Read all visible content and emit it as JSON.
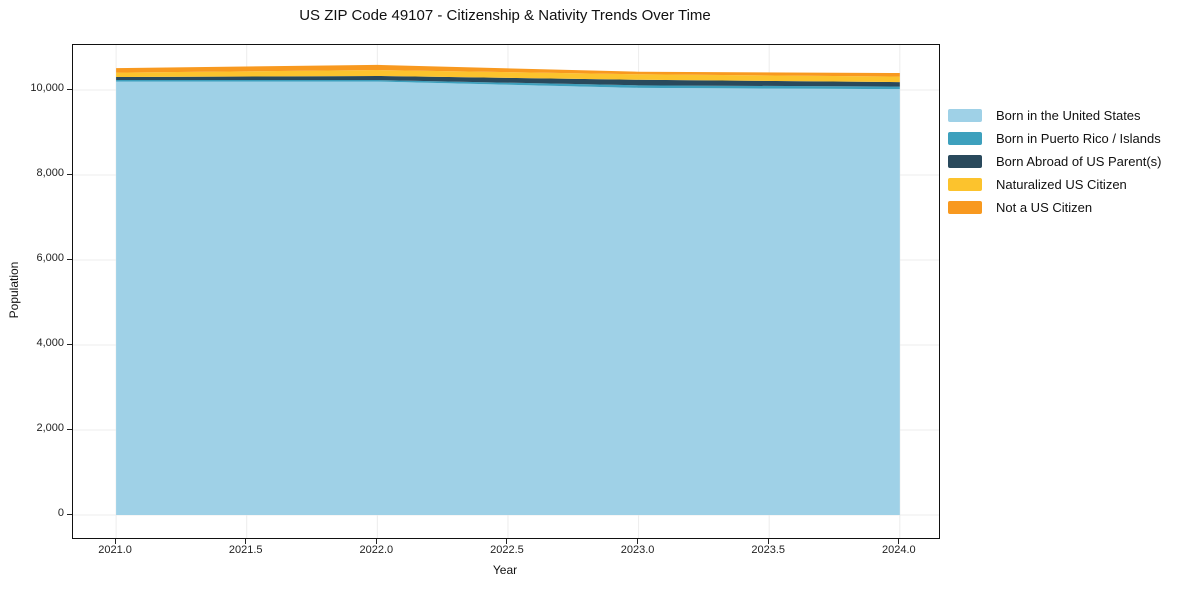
{
  "chart_data": {
    "type": "area",
    "stacked": true,
    "title": "US ZIP Code 49107 - Citizenship & Nativity Trends Over Time",
    "xlabel": "Year",
    "ylabel": "Population",
    "x": [
      2021,
      2022,
      2023,
      2024
    ],
    "series": [
      {
        "name": "Born in the United States",
        "color": "#9fd1e7",
        "values": [
          10200,
          10200,
          10050,
          10020
        ]
      },
      {
        "name": "Born in Puerto Rico / Islands",
        "color": "#3da0bd",
        "values": [
          35,
          35,
          60,
          60
        ]
      },
      {
        "name": "Born Abroad of US Parent(s)",
        "color": "#29495c",
        "values": [
          70,
          95,
          130,
          105
        ]
      },
      {
        "name": "Naturalized US Citizen",
        "color": "#fcc32d",
        "values": [
          105,
          140,
          130,
          130
        ]
      },
      {
        "name": "Not a US Citizen",
        "color": "#f8991f",
        "values": [
          105,
          120,
          60,
          85
        ]
      }
    ],
    "xlim": [
      2020.835,
      2024.15
    ],
    "ylim": [
      -541,
      11059
    ],
    "x_tick_values": [
      2021.0,
      2021.5,
      2022.0,
      2022.5,
      2023.0,
      2023.5,
      2024.0
    ],
    "x_tick_labels": [
      "2021.0",
      "2021.5",
      "2022.0",
      "2022.5",
      "2023.0",
      "2023.5",
      "2024.0"
    ],
    "y_tick_values": [
      0,
      2000,
      4000,
      6000,
      8000,
      10000
    ],
    "y_tick_labels": [
      "0",
      "2,000",
      "4,000",
      "6,000",
      "8,000",
      "10,000"
    ],
    "grid": true,
    "grid_color": "#ececec",
    "spine_color": "#111111",
    "legend_position": "right-outside"
  }
}
